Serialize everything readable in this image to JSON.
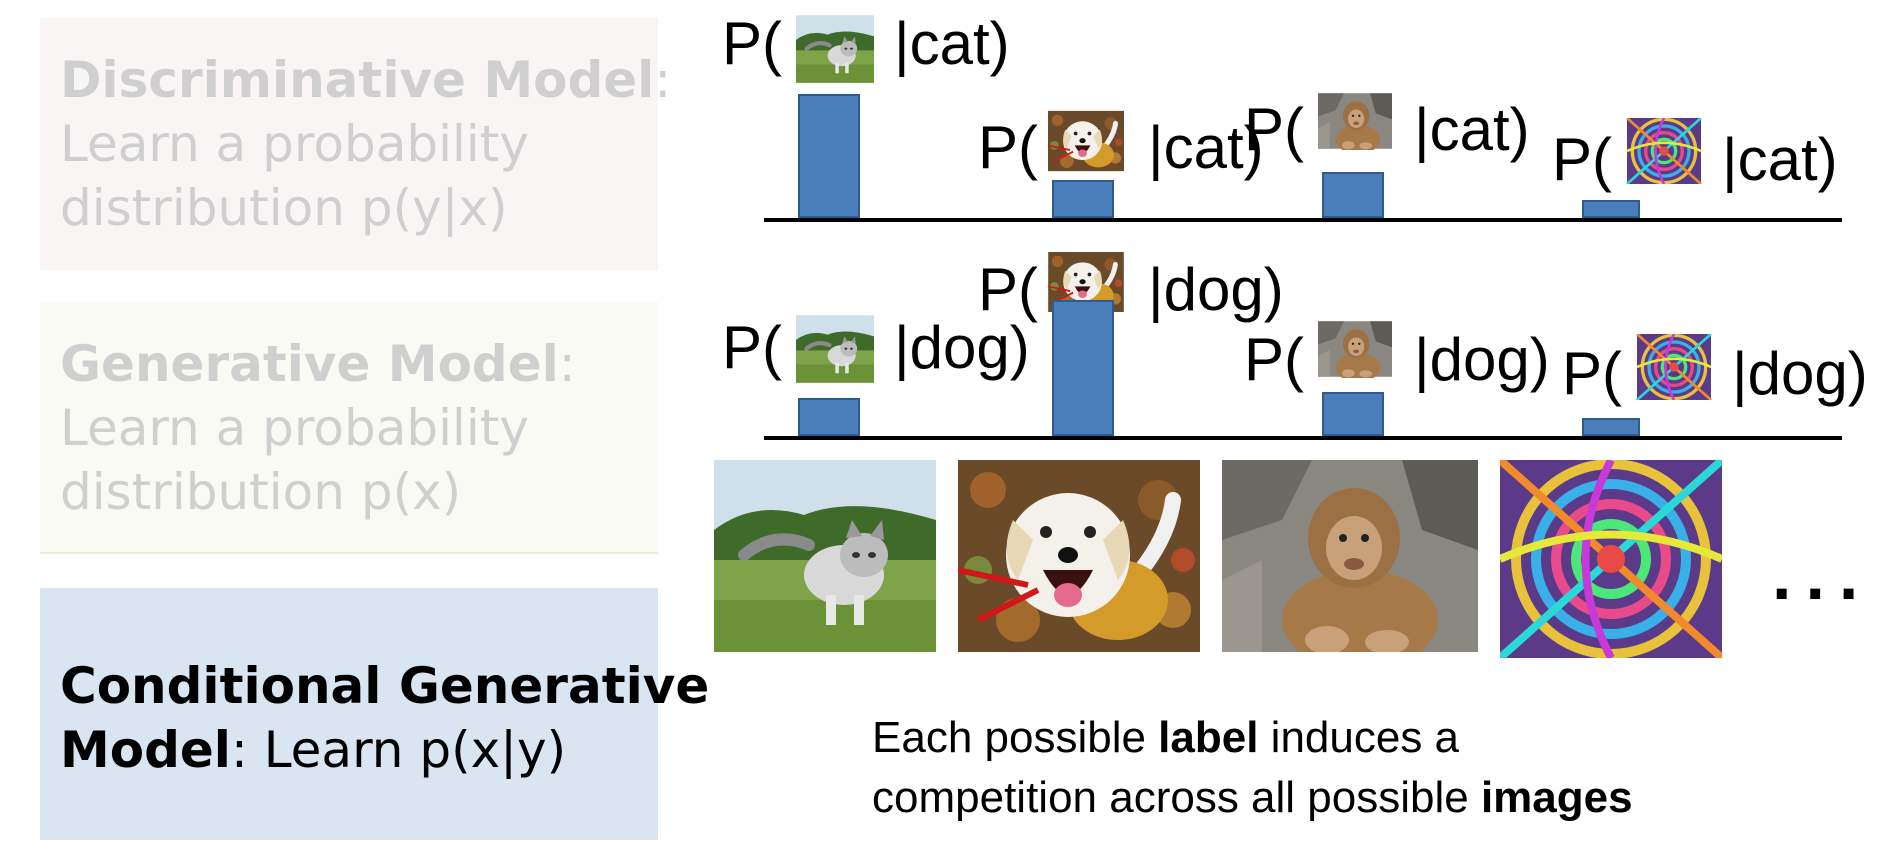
{
  "boxes": {
    "discriminative": {
      "title": "Discriminative Model",
      "colon": ":",
      "line2": "Learn a probability",
      "line3": "distribution p(y|x)"
    },
    "generative": {
      "title": "Generative Model",
      "colon": ":",
      "line2": "Learn a probability",
      "line3": "distribution p(x)"
    },
    "conditional": {
      "title": "Conditional Generative",
      "title2": "Model",
      "rest": ":  Learn p(x|y)"
    }
  },
  "label_prefix": "P(",
  "rows": [
    {
      "condition": "cat",
      "labels": [
        "|cat)",
        "|cat)",
        "|cat)",
        "|cat)"
      ],
      "probabilities": [
        0.62,
        0.19,
        0.23,
        0.09
      ]
    },
    {
      "condition": "dog",
      "labels": [
        "|dog)",
        "|dog)",
        "|dog)",
        "|dog)"
      ],
      "probabilities": [
        0.19,
        0.68,
        0.22,
        0.09
      ]
    }
  ],
  "images": [
    "cat",
    "dog",
    "monkey",
    "abstract"
  ],
  "ellipsis": "...",
  "caption": {
    "line1_a": "Each possible ",
    "line1_b": "label",
    "line1_c": " induces a",
    "line2_a": "competition across all possible ",
    "line2_b": "images"
  },
  "colors": {
    "bar": "#4a7ebb",
    "conditional_box": "#d9e5f1"
  }
}
